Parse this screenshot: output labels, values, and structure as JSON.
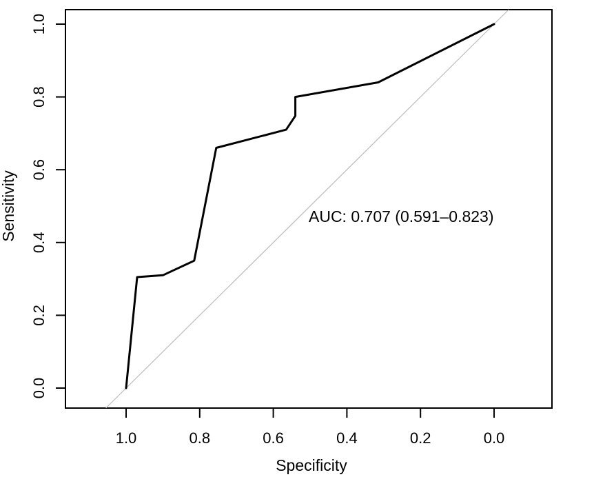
{
  "chart_data": {
    "type": "line",
    "title": "",
    "xlabel": "Specificity",
    "ylabel": "Sensitivity",
    "x_reversed": true,
    "grid": false,
    "legend_position": "none",
    "x_ticks": [
      "1.0",
      "0.8",
      "0.6",
      "0.4",
      "0.2",
      "0.0"
    ],
    "x_tick_values": [
      1.0,
      0.8,
      0.6,
      0.4,
      0.2,
      0.0
    ],
    "y_ticks": [
      "0.0",
      "0.2",
      "0.4",
      "0.6",
      "0.8",
      "1.0"
    ],
    "y_tick_values": [
      0.0,
      0.2,
      0.4,
      0.6,
      0.8,
      1.0
    ],
    "xlim": [
      1.16,
      -0.16
    ],
    "ylim": [
      -0.055,
      1.04
    ],
    "roc_curve": {
      "name": "ROC curve",
      "color": "#000000",
      "line_width": 3,
      "points": [
        [
          1.0,
          0.0
        ],
        [
          0.97,
          0.305
        ],
        [
          0.9,
          0.31
        ],
        [
          0.815,
          0.35
        ],
        [
          0.755,
          0.66
        ],
        [
          0.565,
          0.71
        ],
        [
          0.54,
          0.748
        ],
        [
          0.54,
          0.8
        ],
        [
          0.315,
          0.84
        ],
        [
          0.0,
          1.0
        ]
      ]
    },
    "reference_line": {
      "name": "chance diagonal",
      "color": "#b9bcbe",
      "line_width": 1.2,
      "from": [
        1.0,
        0.0
      ],
      "to": [
        0.0,
        1.0
      ],
      "extends_to_plot_edges": true
    },
    "annotation": {
      "text": "AUC: 0.707 (0.591–0.823)",
      "auc": 0.707,
      "ci_low": 0.591,
      "ci_high": 0.823,
      "position": {
        "specificity": 0.504,
        "sensitivity": 0.473
      },
      "align": "left"
    }
  }
}
